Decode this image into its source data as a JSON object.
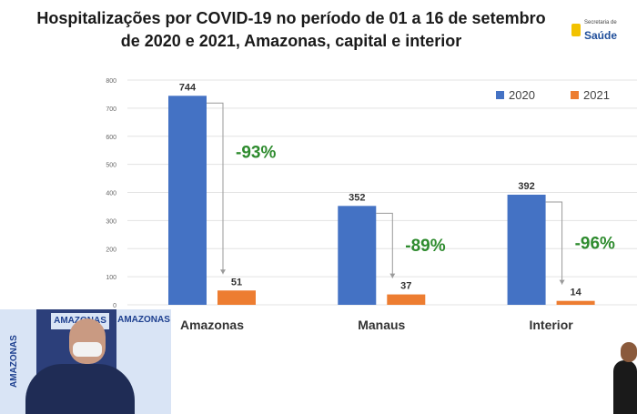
{
  "header": {
    "title_line1": "Hospitalizações por COVID-19 no período de 01 a 16 de setembro",
    "title_line2": "de 2020 e 2021, Amazonas, capital e interior",
    "logo_small": "Secretaria de",
    "logo_big": "Saúde"
  },
  "chart_data": {
    "type": "bar",
    "categories": [
      "Amazonas",
      "Manaus",
      "Interior"
    ],
    "series": [
      {
        "name": "2020",
        "values": [
          744,
          352,
          392
        ],
        "color": "#4472c4"
      },
      {
        "name": "2021",
        "values": [
          51,
          37,
          14
        ],
        "color": "#ed7d31"
      }
    ],
    "value_labels": {
      "2020": [
        "744",
        "352",
        "392"
      ],
      "2021": [
        "51",
        "37",
        "14"
      ]
    },
    "changes": [
      "-93%",
      "-89%",
      "-96%"
    ],
    "change_color": "#2e8b2e",
    "ylim": [
      0,
      800
    ],
    "yticks": [
      0,
      100,
      200,
      300,
      400,
      500,
      600,
      700,
      800
    ],
    "grid": true,
    "legend_position": "top-right"
  },
  "video": {
    "banner_text": "AMAZONAS"
  }
}
